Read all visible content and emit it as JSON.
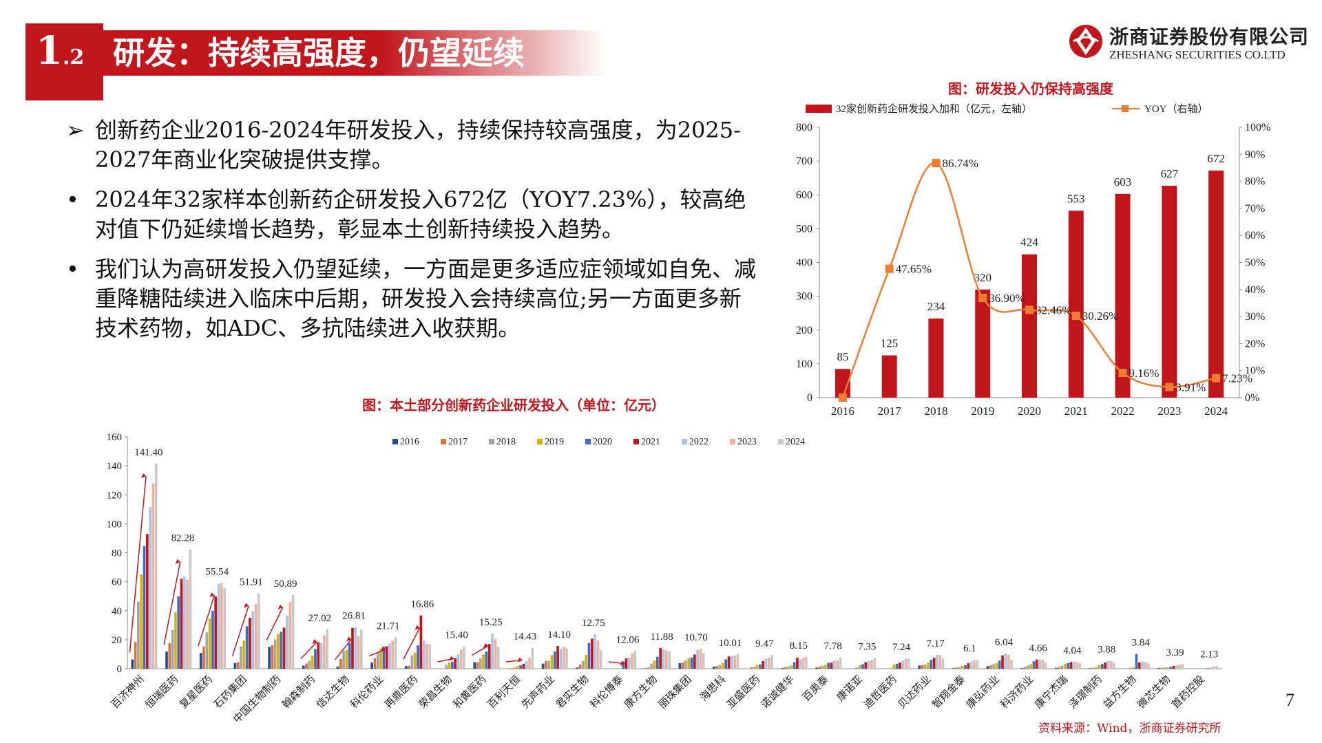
{
  "header": {
    "section_main": "1",
    "section_sub": ".2",
    "title": "研发：持续高强度，仍望延续"
  },
  "logo": {
    "name_cn": "浙商证券股份有限公司",
    "name_en": "ZHESHANG SECURITIES CO.LTD",
    "icon": "zheshang-logo-icon"
  },
  "bullets": [
    {
      "marker": "➢",
      "text": "创新药企业2016-2024年研发投入，持续保持较高强度，为2025-2027年商业化突破提供支撑。"
    },
    {
      "marker": "•",
      "text": "2024年32家样本创新药企研发投入672亿（YOY7.23%），较高绝对值下仍延续增长趋势，彰显本土创新持续投入趋势。"
    },
    {
      "marker": "•",
      "text": "我们认为高研发投入仍望延续，一方面是更多适应症领域如自免、减重降糖陆续进入临床中后期，研发投入会持续高位;另一方面更多新技术药物，如ADC、多抗陆续进入收获期。"
    }
  ],
  "source": "资料来源：Wind，浙商证券研究所",
  "page_number": "7",
  "colors": {
    "brand_red": "#c0161c",
    "yoy_orange": "#ed7d31"
  },
  "chart_data": [
    {
      "type": "bar",
      "title": "图：研发投入仍保持高强度",
      "categories": [
        "2016",
        "2017",
        "2018",
        "2019",
        "2020",
        "2021",
        "2022",
        "2023",
        "2024"
      ],
      "series": [
        {
          "name": "32家创新药企研发投入加和（亿元，左轴）",
          "axis": "left",
          "type": "bar",
          "color": "#c0161c",
          "values": [
            85,
            125,
            234,
            320,
            424,
            553,
            603,
            627,
            672
          ],
          "labels": [
            "85",
            "125",
            "234",
            "320",
            "424",
            "553",
            "603",
            "627",
            "672"
          ]
        },
        {
          "name": "YOY（右轴）",
          "axis": "right",
          "type": "line",
          "color": "#ed7d31",
          "values": [
            0,
            47.65,
            86.74,
            36.9,
            32.46,
            30.26,
            9.16,
            3.91,
            7.23
          ],
          "labels": [
            "",
            "47.65%",
            "86.74%",
            "36.90%",
            "32.46%",
            "30.26%",
            "9.16%",
            "3.91%",
            "7.23%"
          ]
        }
      ],
      "ylim_left": [
        0,
        800
      ],
      "yticks_left": [
        "0",
        "100",
        "200",
        "300",
        "400",
        "500",
        "600",
        "700",
        "800"
      ],
      "ylim_right": [
        0,
        100
      ],
      "yticks_right": [
        "0%",
        "10%",
        "20%",
        "30%",
        "40%",
        "50%",
        "60%",
        "70%",
        "80%",
        "90%",
        "100%"
      ],
      "grid": false,
      "legend_position": "top"
    },
    {
      "type": "bar",
      "title": "图：本土部分创新药企业研发投入（单位：亿元）",
      "companies": [
        "百济神州",
        "恒瑞医药",
        "复星医药",
        "石药集团",
        "中国生物制药",
        "翰森制药",
        "信达生物",
        "科伦药业",
        "再鼎医药",
        "荣昌生物",
        "和黄医药",
        "百利天恒",
        "先声药业",
        "君实生物",
        "科伦博泰",
        "康方生物",
        "丽珠集团",
        "海思科",
        "亚盛医药",
        "诺诚健华",
        "百奥泰",
        "康诺亚",
        "迪哲医药",
        "贝达药业",
        "智翔金泰",
        "康弘药业",
        "科济药业",
        "康宁杰瑞",
        "泽璟制药",
        "益方生物",
        "微芯生物",
        "首药控股"
      ],
      "years": [
        "2016",
        "2017",
        "2018",
        "2019",
        "2020",
        "2021",
        "2022",
        "2023",
        "2024"
      ],
      "year_colors": [
        "#1f4e9c",
        "#d9733a",
        "#a5a5a5",
        "#d9b100",
        "#3d6cc3",
        "#c0161c",
        "#a9c4e6",
        "#f2b19a",
        "#c8c8c8"
      ],
      "values": [
        [
          6.4,
          18.4,
          46.3,
          65,
          84.6,
          93,
          111.5,
          128,
          141.4
        ],
        [
          11.8,
          17.6,
          26.7,
          38.96,
          49.9,
          62,
          63.5,
          61.5,
          82.28
        ],
        [
          10.8,
          15.3,
          25,
          34.6,
          40.0,
          49.8,
          58.6,
          59.2,
          55.54
        ],
        [
          4,
          4.5,
          15.4,
          19.3,
          29.3,
          35.2,
          39.5,
          44.5,
          51.91
        ],
        [
          15,
          16.2,
          20.2,
          23.8,
          25.5,
          28.4,
          36.6,
          45.9,
          50.89
        ],
        [
          2.2,
          3.5,
          5.5,
          9,
          13.6,
          18.3,
          17.7,
          22.9,
          27.02
        ],
        [
          1.5,
          6.8,
          12.2,
          12.9,
          17.6,
          28.1,
          28.7,
          22.4,
          26.81
        ],
        [
          4.2,
          7.2,
          10.8,
          13.9,
          15.3,
          15.5,
          17.6,
          19.4,
          21.71
        ],
        [
          1.9,
          2,
          9.2,
          11.2,
          16.1,
          36.7,
          19.4,
          17.3,
          16.86
        ],
        [
          0,
          0.2,
          2.6,
          4.2,
          4.9,
          7.2,
          9.8,
          13.2,
          15.4
        ],
        [
          4.5,
          4.6,
          7.2,
          9.7,
          11.8,
          17,
          24.3,
          20.5,
          15.25
        ],
        [
          0,
          0.4,
          0.9,
          1.9,
          2.4,
          3.3,
          5.1,
          7.5,
          14.43
        ],
        [
          3.5,
          5.3,
          5.5,
          9.3,
          11.9,
          15.6,
          13.7,
          15.1,
          14.1
        ],
        [
          0.8,
          2.8,
          5.4,
          9.5,
          17.8,
          20.7,
          23.8,
          19.4,
          12.75
        ],
        [
          0,
          0,
          0,
          0,
          5.1,
          7.1,
          7.7,
          10.7,
          12.06
        ],
        [
          0.3,
          0.8,
          3.5,
          5.6,
          8.2,
          14.3,
          13.5,
          12.5,
          11.88
        ],
        [
          3.8,
          4.2,
          5.7,
          7.1,
          7.7,
          9.8,
          12.9,
          13.8,
          10.7
        ],
        [
          1.5,
          1.8,
          2.6,
          3.8,
          6.5,
          8.4,
          8.6,
          9.1,
          10.01
        ],
        [
          0,
          0.9,
          1.3,
          2.6,
          2.9,
          5.3,
          7.1,
          7.6,
          9.47
        ],
        [
          0.5,
          1,
          1.6,
          2.2,
          4.5,
          7.6,
          6.4,
          7.5,
          8.15
        ],
        [
          0.8,
          1.5,
          2.1,
          2.8,
          4.1,
          4.2,
          5.3,
          5.9,
          7.78
        ],
        [
          0,
          0,
          0.9,
          2.3,
          3.1,
          4.5,
          5.3,
          6.1,
          7.35
        ],
        [
          0,
          0.2,
          0.6,
          2.8,
          3.4,
          4.2,
          5.6,
          6.7,
          7.24
        ],
        [
          2.2,
          2.5,
          2.9,
          4.2,
          6.1,
          7.5,
          9.5,
          9.3,
          7.17
        ],
        [
          0.4,
          0.8,
          1.1,
          2,
          2.5,
          3.7,
          4.9,
          5.8,
          6.1
        ],
        [
          1.7,
          2.3,
          3.2,
          3.8,
          5.6,
          9.1,
          10.4,
          9.7,
          6.04
        ],
        [
          0.5,
          1,
          2.2,
          3.1,
          5.1,
          6.3,
          6.5,
          6.2,
          4.66
        ],
        [
          0.6,
          1.1,
          2.1,
          3.2,
          3.9,
          4.6,
          4.8,
          4.4,
          4.04
        ],
        [
          0.3,
          0.5,
          1.1,
          2.5,
          3.3,
          4.3,
          5.4,
          5.3,
          3.88
        ],
        [
          0,
          0,
          0.6,
          0.9,
          10.2,
          4.3,
          4.9,
          4.6,
          3.84
        ],
        [
          0.5,
          0.6,
          0.8,
          1,
          1.2,
          1.9,
          2.4,
          2.9,
          3.39
        ],
        [
          0,
          0,
          0,
          0,
          0,
          0.3,
          0.8,
          1.6,
          2.13
        ]
      ],
      "labels_2024": [
        "141.40",
        "82.28",
        "55.54",
        "51.91",
        "50.89",
        "27.02",
        "26.81",
        "21.71",
        "16.86",
        "15.40",
        "15.25",
        "14.43",
        "14.10",
        "12.75",
        "12.06",
        "11.88",
        "10.70",
        "10.01",
        "9.47",
        "8.15",
        "7.78",
        "7.35",
        "7.24",
        "7.17",
        "6.1",
        "6.04",
        "4.66",
        "4.04",
        "3.88",
        "3.84",
        "3.39",
        "2.13"
      ],
      "ylim": [
        0,
        160
      ],
      "yticks": [
        "0",
        "20",
        "40",
        "60",
        "80",
        "100",
        "120",
        "140",
        "160"
      ],
      "legend_position": "top",
      "grid": false,
      "trend_arrows": [
        "百济神州",
        "恒瑞医药",
        "复星医药",
        "石药集团",
        "中国生物制药",
        "翰森制药",
        "信达生物",
        "科伦药业",
        "再鼎医药",
        "荣昌生物",
        "和黄医药",
        "百利天恒",
        "科伦博泰"
      ]
    }
  ]
}
